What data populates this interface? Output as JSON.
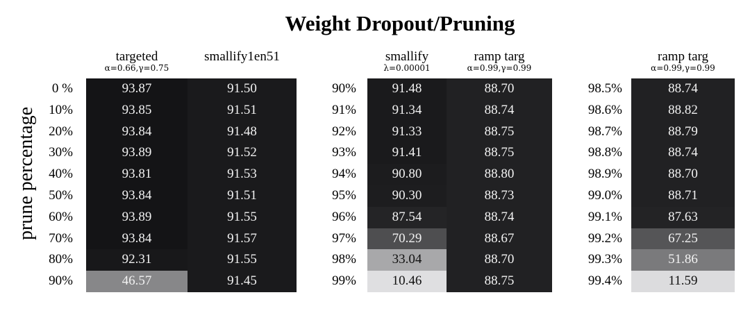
{
  "chart_data": {
    "type": "heatmap",
    "title": "Weight Dropout/Pruning",
    "ylabel": "prune percentage",
    "colormap": {
      "high": "#141416",
      "low": "#e4e4e4"
    },
    "panels": [
      {
        "rows": [
          "0 %",
          "10%",
          "20%",
          "30%",
          "40%",
          "50%",
          "60%",
          "70%",
          "80%",
          "90%"
        ],
        "columns": [
          {
            "name": "targeted",
            "params": "α=0.66,γ=0.75",
            "values": [
              93.87,
              93.85,
              93.84,
              93.89,
              93.81,
              93.84,
              93.89,
              93.84,
              92.31,
              46.57
            ]
          },
          {
            "name": "smallify1en51",
            "params": "",
            "values": [
              91.5,
              91.51,
              91.48,
              91.52,
              91.53,
              91.51,
              91.55,
              91.57,
              91.55,
              91.45
            ]
          }
        ]
      },
      {
        "rows": [
          "90%",
          "91%",
          "92%",
          "93%",
          "94%",
          "95%",
          "96%",
          "97%",
          "98%",
          "99%"
        ],
        "columns": [
          {
            "name": "smallify",
            "params": "λ=0.00001",
            "values": [
              91.48,
              91.34,
              91.33,
              91.41,
              90.8,
              90.3,
              87.54,
              70.29,
              33.04,
              10.46
            ]
          },
          {
            "name": "ramp targ",
            "params": "α=0.99,γ=0.99",
            "values": [
              88.7,
              88.74,
              88.75,
              88.75,
              88.8,
              88.73,
              88.74,
              88.67,
              88.7,
              88.75
            ]
          }
        ]
      },
      {
        "rows": [
          "98.5%",
          "98.6%",
          "98.7%",
          "98.8%",
          "98.9%",
          "99.0%",
          "99.1%",
          "99.2%",
          "99.3%",
          "99.4%"
        ],
        "columns": [
          {
            "name": "ramp targ",
            "params": "α=0.99,γ=0.99",
            "values": [
              88.74,
              88.82,
              88.79,
              88.74,
              88.7,
              88.71,
              87.63,
              67.25,
              51.86,
              11.59
            ]
          }
        ]
      }
    ]
  }
}
